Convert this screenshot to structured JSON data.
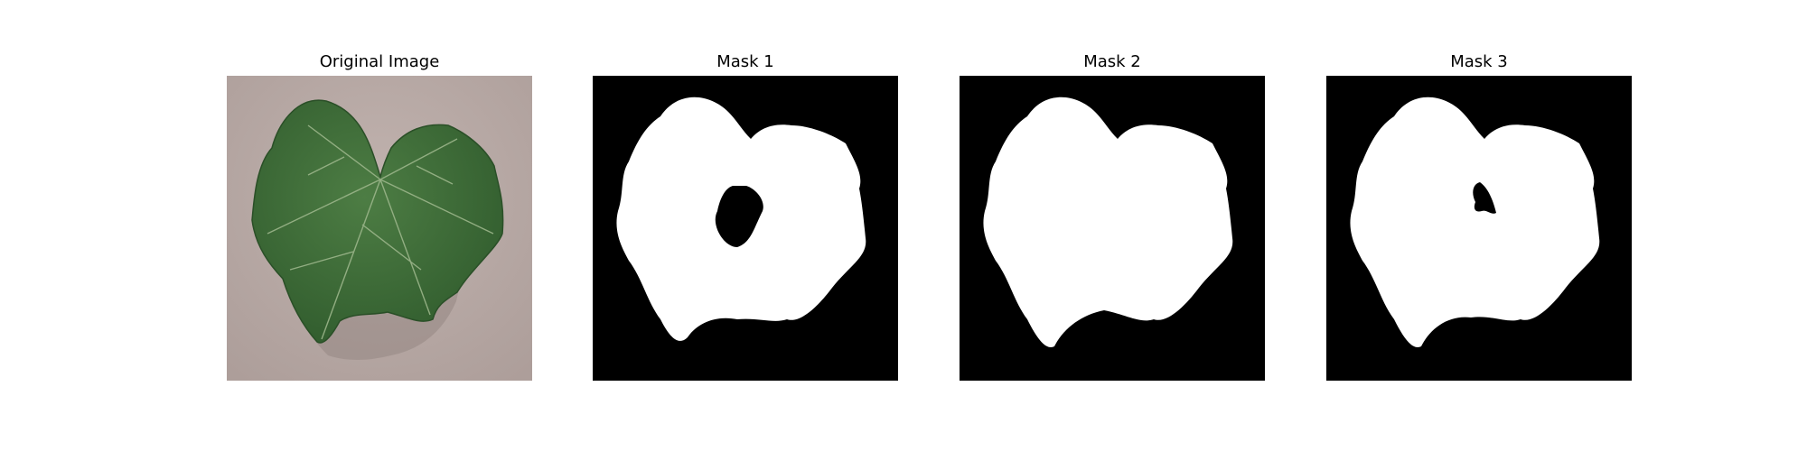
{
  "figure": {
    "panels": [
      {
        "title": "Original Image",
        "kind": "photo"
      },
      {
        "title": "Mask 1",
        "kind": "mask"
      },
      {
        "title": "Mask 2",
        "kind": "mask"
      },
      {
        "title": "Mask 3",
        "kind": "mask"
      }
    ],
    "colors": {
      "background": "#ffffff",
      "photo_ground": "#b9aaa6",
      "leaf": "#3f6e39",
      "leaf_vein": "#9bb58a",
      "mask_bg": "#000000",
      "mask_fg": "#ffffff"
    }
  }
}
